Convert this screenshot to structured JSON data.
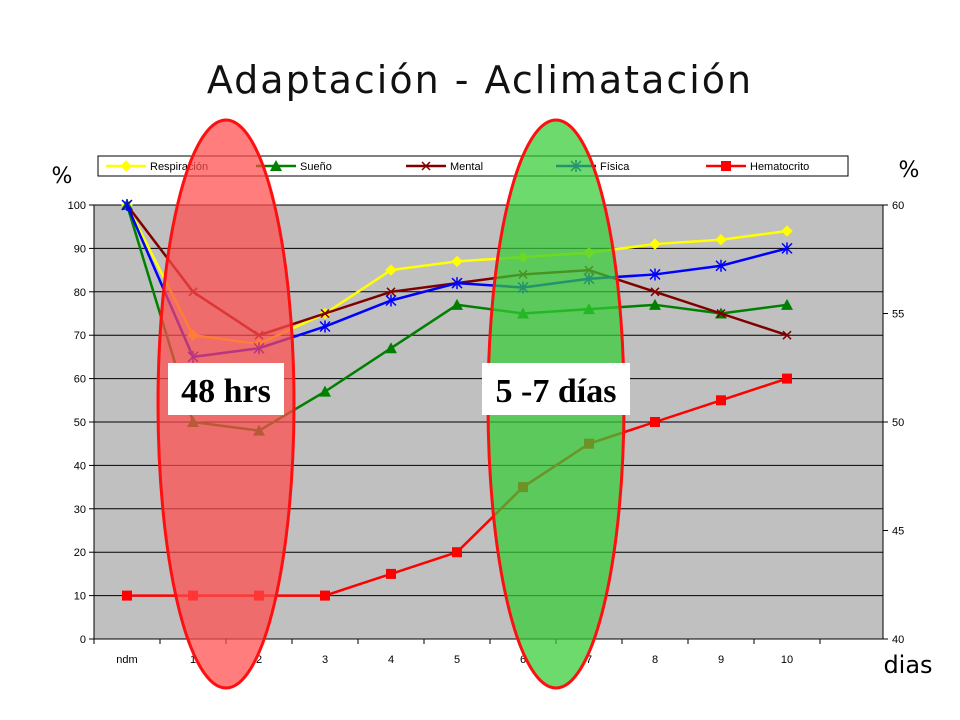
{
  "slide": {
    "title": "Adaptación - Aclimatación"
  },
  "chart_data": {
    "type": "line",
    "title": "",
    "categories": [
      "ndm",
      "1",
      "2",
      "3",
      "4",
      "5",
      "6",
      "7",
      "8",
      "9",
      "10"
    ],
    "xlabel": "dias",
    "ylabel_left": "%",
    "ylabel_right": "%",
    "ylim_left": [
      0,
      100
    ],
    "yticks_left": [
      0,
      10,
      20,
      30,
      40,
      50,
      60,
      70,
      80,
      90,
      100
    ],
    "ylim_right": [
      40,
      60
    ],
    "yticks_right": [
      40,
      45,
      50,
      55,
      60
    ],
    "grid": true,
    "legend_placement": "top",
    "plot_background": "#c0c0c0",
    "series": [
      {
        "name": "Respiración",
        "color": "#ffff00",
        "marker": "diamond",
        "values": [
          100,
          70,
          68,
          75,
          85,
          87,
          88,
          89,
          91,
          92,
          94
        ]
      },
      {
        "name": "Sueño",
        "color": "#008000",
        "marker": "triangle",
        "values": [
          100,
          50,
          48,
          57,
          67,
          77,
          75,
          76,
          77,
          75,
          77
        ]
      },
      {
        "name": "Mental",
        "color": "#800000",
        "marker": "x",
        "values": [
          100,
          80,
          70,
          75,
          80,
          82,
          84,
          85,
          80,
          75,
          70
        ]
      },
      {
        "name": "Física",
        "color": "#0000ff",
        "marker": "star",
        "values": [
          100,
          65,
          67,
          72,
          78,
          82,
          81,
          83,
          84,
          86,
          90
        ]
      },
      {
        "name": "Hematocrito",
        "color": "#ff0000",
        "marker": "square",
        "values": [
          10,
          10,
          10,
          10,
          15,
          20,
          35,
          45,
          50,
          55,
          60
        ]
      }
    ],
    "annotations": [
      {
        "label": "48 hrs",
        "color": "#ff4b4b",
        "spans": [
          "1",
          "2"
        ]
      },
      {
        "label": "5 -7 días",
        "color": "#33cc33",
        "spans": [
          "6",
          "7"
        ]
      }
    ]
  }
}
